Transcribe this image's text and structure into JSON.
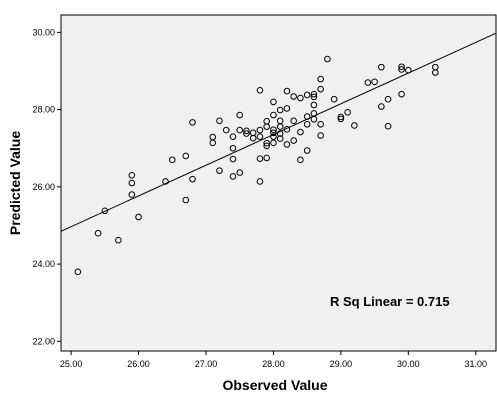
{
  "chart_data": {
    "type": "scatter",
    "xlabel": "Observed Value",
    "ylabel": "Predicted Value",
    "xlim": [
      24.85,
      31.3
    ],
    "ylim": [
      21.75,
      30.45
    ],
    "xticks": [
      25,
      26,
      27,
      28,
      29,
      30,
      31
    ],
    "yticks": [
      22,
      24,
      26,
      28,
      30
    ],
    "xtick_labels": [
      "25.00",
      "26.00",
      "27.00",
      "28.00",
      "29.00",
      "30.00",
      "31.00"
    ],
    "ytick_labels": [
      "22.00",
      "24.00",
      "26.00",
      "28.00",
      "30.00"
    ],
    "annotation": "R Sq Linear = 0.715",
    "grid": false,
    "plot_background": "#f0f0f0",
    "marker_color": "#000000",
    "fit_line": {
      "x": [
        24.85,
        31.3
      ],
      "y": [
        24.85,
        29.98
      ]
    },
    "points": [
      [
        25.1,
        23.8
      ],
      [
        25.4,
        24.8
      ],
      [
        25.5,
        25.38
      ],
      [
        25.7,
        24.62
      ],
      [
        25.9,
        25.8
      ],
      [
        25.9,
        26.1
      ],
      [
        25.9,
        26.3
      ],
      [
        26.0,
        25.22
      ],
      [
        26.4,
        26.14
      ],
      [
        26.5,
        26.7
      ],
      [
        26.7,
        25.66
      ],
      [
        26.7,
        26.8
      ],
      [
        26.8,
        26.2
      ],
      [
        26.8,
        27.67
      ],
      [
        27.1,
        27.29
      ],
      [
        27.1,
        27.14
      ],
      [
        27.2,
        27.71
      ],
      [
        27.2,
        26.42
      ],
      [
        27.3,
        27.47
      ],
      [
        27.4,
        27.3
      ],
      [
        27.4,
        27.0
      ],
      [
        27.4,
        26.72
      ],
      [
        27.4,
        26.27
      ],
      [
        27.5,
        26.37
      ],
      [
        27.5,
        27.86
      ],
      [
        27.5,
        27.47
      ],
      [
        27.6,
        27.45
      ],
      [
        27.6,
        27.38
      ],
      [
        27.7,
        27.4
      ],
      [
        27.7,
        27.26
      ],
      [
        27.8,
        28.5
      ],
      [
        27.8,
        27.47
      ],
      [
        27.8,
        27.3
      ],
      [
        27.8,
        26.73
      ],
      [
        27.8,
        26.14
      ],
      [
        27.9,
        27.7
      ],
      [
        27.9,
        27.56
      ],
      [
        27.9,
        27.06
      ],
      [
        27.9,
        27.13
      ],
      [
        27.9,
        26.75
      ],
      [
        28.0,
        28.2
      ],
      [
        28.0,
        27.86
      ],
      [
        28.0,
        27.48
      ],
      [
        28.0,
        27.4
      ],
      [
        28.0,
        27.3
      ],
      [
        28.0,
        27.14
      ],
      [
        28.1,
        27.99
      ],
      [
        28.1,
        27.71
      ],
      [
        28.1,
        27.56
      ],
      [
        28.1,
        27.38
      ],
      [
        28.1,
        27.25
      ],
      [
        28.2,
        28.48
      ],
      [
        28.2,
        28.03
      ],
      [
        28.2,
        27.49
      ],
      [
        28.2,
        27.1
      ],
      [
        28.3,
        28.34
      ],
      [
        28.3,
        27.71
      ],
      [
        28.3,
        27.2
      ],
      [
        28.4,
        27.42
      ],
      [
        28.4,
        26.7
      ],
      [
        28.4,
        28.3
      ],
      [
        28.5,
        28.38
      ],
      [
        28.5,
        27.82
      ],
      [
        28.5,
        26.94
      ],
      [
        28.5,
        27.62
      ],
      [
        28.6,
        28.4
      ],
      [
        28.6,
        28.33
      ],
      [
        28.6,
        28.12
      ],
      [
        28.6,
        27.9
      ],
      [
        28.6,
        27.75
      ],
      [
        28.7,
        28.79
      ],
      [
        28.7,
        28.53
      ],
      [
        28.7,
        27.62
      ],
      [
        28.7,
        27.33
      ],
      [
        28.8,
        29.31
      ],
      [
        28.9,
        28.27
      ],
      [
        29.0,
        27.81
      ],
      [
        29.0,
        27.76
      ],
      [
        29.1,
        27.93
      ],
      [
        29.2,
        27.59
      ],
      [
        29.4,
        28.7
      ],
      [
        29.5,
        28.72
      ],
      [
        29.6,
        29.1
      ],
      [
        29.6,
        28.08
      ],
      [
        29.7,
        28.27
      ],
      [
        29.7,
        27.57
      ],
      [
        29.9,
        29.11
      ],
      [
        29.9,
        29.04
      ],
      [
        29.9,
        28.4
      ],
      [
        30.0,
        29.02
      ],
      [
        30.4,
        29.1
      ],
      [
        30.4,
        28.96
      ]
    ]
  }
}
